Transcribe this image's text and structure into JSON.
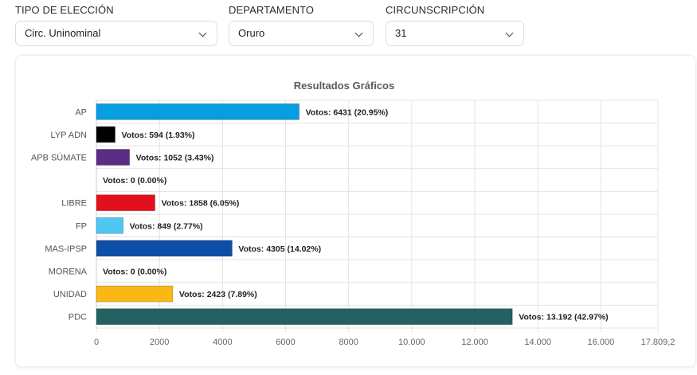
{
  "filters": [
    {
      "label": "TIPO DE ELECCIÓN",
      "value": "Circ. Uninominal",
      "icon": "chevron-down-icon"
    },
    {
      "label": "DEPARTAMENTO",
      "value": "Oruro",
      "icon": "chevron-down-icon"
    },
    {
      "label": "CIRCUNSCRIPCIÓN",
      "value": "31",
      "icon": "chevron-down-icon"
    }
  ],
  "chart_data": {
    "type": "bar",
    "orientation": "horizontal",
    "title": "Resultados Gráficos",
    "categories": [
      "AP",
      "LYP ADN",
      "APB SÚMATE",
      "",
      "LIBRE",
      "FP",
      "MAS-IPSP",
      "MORENA",
      "UNIDAD",
      "PDC"
    ],
    "values": [
      6431,
      594,
      1052,
      0,
      1858,
      849,
      4305,
      0,
      2423,
      13192
    ],
    "data_labels": [
      "Votos: 6431 (20.95%)",
      "Votos: 594 (1.93%)",
      "Votos: 1052 (3.43%)",
      "Votos: 0 (0.00%)",
      "Votos: 1858 (6.05%)",
      "Votos: 849 (2.77%)",
      "Votos: 4305 (14.02%)",
      "Votos: 0 (0.00%)",
      "Votos: 2423 (7.89%)",
      "Votos: 13.192 (42.97%)"
    ],
    "colors": [
      "#069ee0",
      "#000000",
      "#5b2c83",
      "#ffffff",
      "#e3101b",
      "#4ec7f2",
      "#0d4ea6",
      "#ffffff",
      "#fbb713",
      "#236261"
    ],
    "xlim": [
      0,
      17809.2
    ],
    "xticks": [
      0,
      2000,
      4000,
      6000,
      8000,
      10000,
      12000,
      14000,
      16000,
      17809.2
    ],
    "xtick_labels": [
      "0",
      "2000",
      "4000",
      "6000",
      "8000",
      "10.000",
      "12.000",
      "14.000",
      "16.000",
      "17.809,2"
    ],
    "grid": true,
    "legend": "none",
    "xlabel": "",
    "ylabel": ""
  }
}
